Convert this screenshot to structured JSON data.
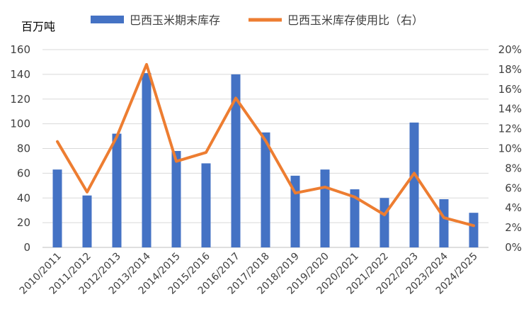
{
  "chart_data": {
    "type": "bar",
    "title": "",
    "y_unit_label": "百万吨",
    "categories": [
      "2010/2011",
      "2011/2012",
      "2012/2013",
      "2013/2014",
      "2014/2015",
      "2015/2016",
      "2016/2017",
      "2017/2018",
      "2018/2019",
      "2019/2020",
      "2020/2021",
      "2021/2022",
      "2022/2023",
      "2023/2024",
      "2024/2025"
    ],
    "series": [
      {
        "name": "巴西玉米期末库存",
        "type": "bar",
        "axis": "left",
        "color": "#4472C4",
        "values": [
          63,
          42,
          92,
          141,
          78,
          68,
          140,
          93,
          58,
          63,
          47,
          40,
          101,
          39,
          28
        ]
      },
      {
        "name": "巴西玉米库存使用比（右）",
        "type": "line",
        "axis": "right",
        "color": "#ED7D31",
        "values": [
          10.7,
          5.6,
          11.2,
          18.5,
          8.7,
          9.6,
          15.1,
          10.8,
          5.5,
          6.1,
          5.1,
          3.3,
          7.5,
          3.0,
          2.2
        ]
      }
    ],
    "y_left": {
      "min": 0,
      "max": 160,
      "step": 20,
      "ticks": [
        "0",
        "20",
        "40",
        "60",
        "80",
        "100",
        "120",
        "140",
        "160"
      ]
    },
    "y_right": {
      "min": 0,
      "max": 20,
      "step": 2,
      "ticks": [
        "0%",
        "2%",
        "4%",
        "6%",
        "8%",
        "10%",
        "12%",
        "14%",
        "16%",
        "18%",
        "20%"
      ]
    },
    "grid": true,
    "legend_position": "top"
  }
}
